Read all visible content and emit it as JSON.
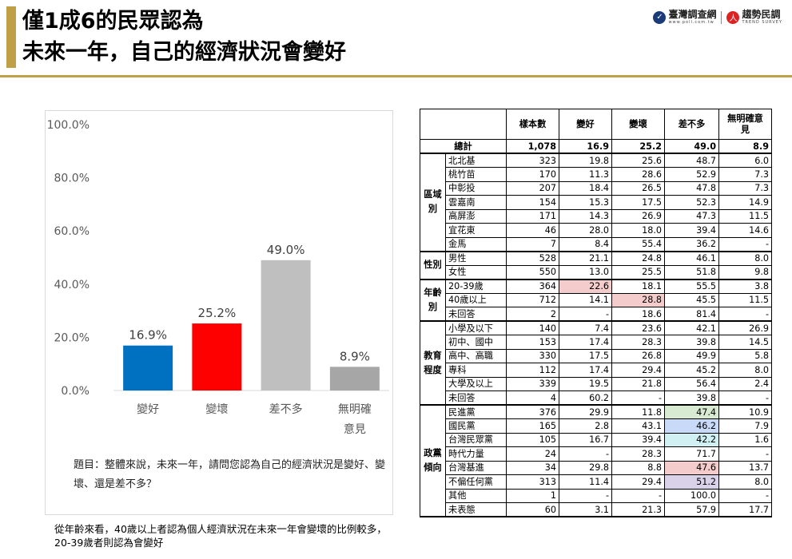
{
  "header": {
    "title_line1": "僅1成6的民眾認為",
    "title_line2": "未來一年，自己的經濟狀況會變好",
    "logo_left": "臺灣調查網",
    "logo_left_sub": "www.poll.com.tw",
    "logo_right": "趨勢民調",
    "logo_right_sub": "TREND SURVEY"
  },
  "chart_data": {
    "type": "bar",
    "categories": [
      "變好",
      "變壞",
      "差不多",
      "無明確意見"
    ],
    "category_lines": [
      [
        "變好"
      ],
      [
        "變壞"
      ],
      [
        "差不多"
      ],
      [
        "無明確",
        "意見"
      ]
    ],
    "values": [
      16.9,
      25.2,
      49.0,
      8.9
    ],
    "value_labels": [
      "16.9%",
      "25.2%",
      "49.0%",
      "8.9%"
    ],
    "y_ticks": [
      0,
      20,
      40,
      60,
      80,
      100
    ],
    "y_tick_labels": [
      "0.0%",
      "20.0%",
      "40.0%",
      "60.0%",
      "80.0%",
      "100.0%"
    ],
    "ylim": [
      0,
      100
    ],
    "colors": [
      "#0070c0",
      "#ff0000",
      "#bfbfbf",
      "#a6a6a6"
    ],
    "grid": false,
    "title": ""
  },
  "question": "題目：整體來說，未來一年，請問您認為自己的經濟狀況是變好、變壞、還是差不多？",
  "footnote": "從年齡來看，40歲以上者認為個人經濟狀況在未來一年會變壞的比例較多，20-39歲者則認為會變好",
  "table": {
    "headers": [
      "",
      "樣本數",
      "變好",
      "變壞",
      "差不多",
      "無明確意見"
    ],
    "total": {
      "label": "總計",
      "values": [
        "1,078",
        "16.9",
        "25.2",
        "49.0",
        "8.9"
      ]
    },
    "groups": [
      {
        "label": "區域別",
        "rows": [
          {
            "label": "北北基",
            "values": [
              "323",
              "19.8",
              "25.6",
              "48.7",
              "6.0"
            ]
          },
          {
            "label": "桃竹苗",
            "values": [
              "170",
              "11.3",
              "28.6",
              "52.9",
              "7.3"
            ]
          },
          {
            "label": "中彰投",
            "values": [
              "207",
              "18.4",
              "26.5",
              "47.8",
              "7.3"
            ]
          },
          {
            "label": "雲嘉南",
            "values": [
              "154",
              "15.3",
              "17.5",
              "52.3",
              "14.9"
            ]
          },
          {
            "label": "高屏澎",
            "values": [
              "171",
              "14.3",
              "26.9",
              "47.3",
              "11.5"
            ]
          },
          {
            "label": "宜花東",
            "values": [
              "46",
              "28.0",
              "18.0",
              "39.4",
              "14.6"
            ]
          },
          {
            "label": "金馬",
            "values": [
              "7",
              "8.4",
              "55.4",
              "36.2",
              "-"
            ]
          }
        ]
      },
      {
        "label": "性別",
        "rows": [
          {
            "label": "男性",
            "values": [
              "528",
              "21.1",
              "24.8",
              "46.1",
              "8.0"
            ]
          },
          {
            "label": "女性",
            "values": [
              "550",
              "13.0",
              "25.5",
              "51.8",
              "9.8"
            ]
          }
        ]
      },
      {
        "label": "年齡別",
        "rows": [
          {
            "label": "20-39歲",
            "values": [
              "364",
              "22.6",
              "18.1",
              "55.5",
              "3.8"
            ],
            "hl": {
              "1": "#f4cccc"
            }
          },
          {
            "label": "40歲以上",
            "values": [
              "712",
              "14.1",
              "28.8",
              "45.5",
              "11.5"
            ],
            "hl": {
              "2": "#f4cccc"
            }
          },
          {
            "label": "未回答",
            "values": [
              "2",
              "-",
              "18.6",
              "81.4",
              "-"
            ]
          }
        ]
      },
      {
        "label": "教育程度",
        "rows": [
          {
            "label": "小學及以下",
            "values": [
              "140",
              "7.4",
              "23.6",
              "42.1",
              "26.9"
            ]
          },
          {
            "label": "初中、國中",
            "values": [
              "153",
              "17.4",
              "28.3",
              "39.8",
              "14.5"
            ]
          },
          {
            "label": "高中、高職",
            "values": [
              "330",
              "17.5",
              "26.8",
              "49.9",
              "5.8"
            ]
          },
          {
            "label": "專科",
            "values": [
              "112",
              "17.4",
              "29.4",
              "45.2",
              "8.0"
            ]
          },
          {
            "label": "大學及以上",
            "values": [
              "339",
              "19.5",
              "21.8",
              "56.4",
              "2.4"
            ]
          },
          {
            "label": "未回答",
            "values": [
              "4",
              "60.2",
              "-",
              "39.8",
              "-"
            ]
          }
        ]
      },
      {
        "label": "政黨傾向",
        "rows": [
          {
            "label": "民進黨",
            "values": [
              "376",
              "29.9",
              "11.8",
              "47.4",
              "10.9"
            ],
            "hl": {
              "3": "#d9ead3"
            }
          },
          {
            "label": "國民黨",
            "values": [
              "165",
              "2.8",
              "43.1",
              "46.2",
              "7.9"
            ],
            "hl": {
              "3": "#c9daf8"
            }
          },
          {
            "label": "台灣民眾黨",
            "values": [
              "105",
              "16.7",
              "39.4",
              "42.2",
              "1.6"
            ],
            "hl": {
              "3": "#d0f0f4"
            }
          },
          {
            "label": "時代力量",
            "values": [
              "24",
              "-",
              "28.3",
              "71.7",
              "-"
            ]
          },
          {
            "label": "台灣基進",
            "values": [
              "34",
              "29.8",
              "8.8",
              "47.6",
              "13.7"
            ],
            "hl": {
              "3": "#f4cccc"
            }
          },
          {
            "label": "不偏任何黨",
            "values": [
              "313",
              "11.4",
              "29.4",
              "51.2",
              "8.0"
            ],
            "hl": {
              "3": "#d9d2e9"
            }
          },
          {
            "label": "其他",
            "values": [
              "1",
              "-",
              "-",
              "100.0",
              "-"
            ]
          },
          {
            "label": "未表態",
            "values": [
              "60",
              "3.1",
              "21.3",
              "57.9",
              "17.7"
            ]
          }
        ]
      }
    ]
  }
}
